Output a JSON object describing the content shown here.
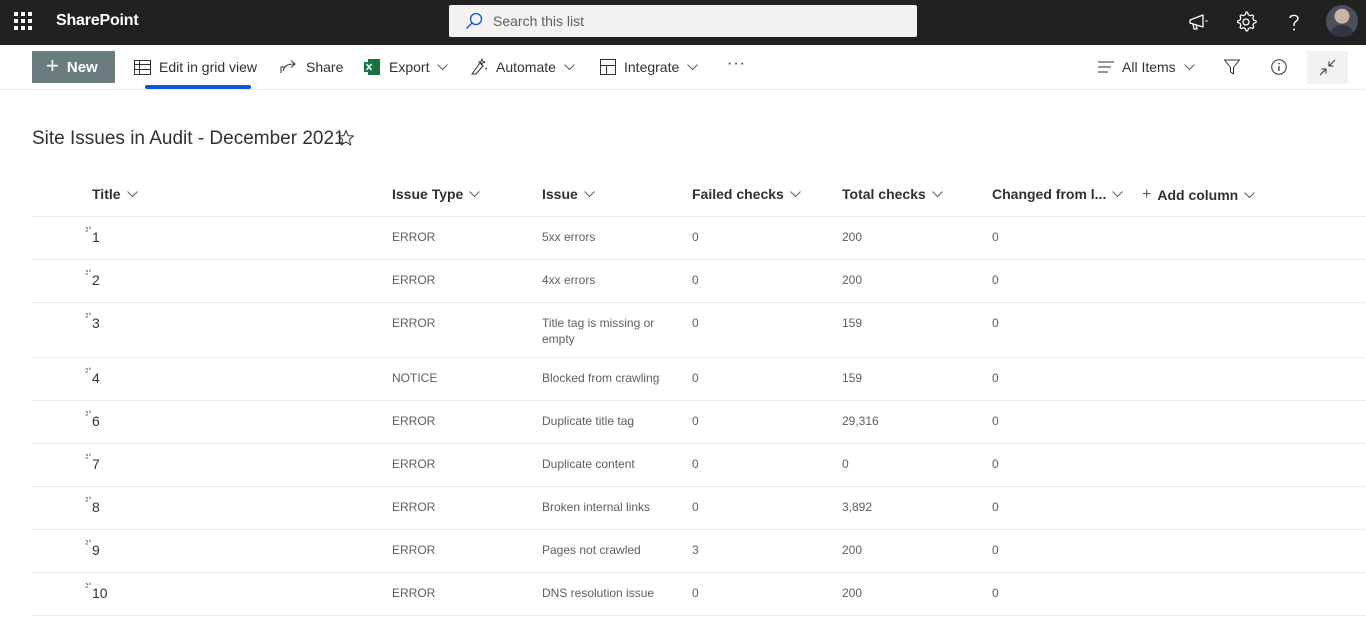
{
  "suite": {
    "app_name": "SharePoint",
    "search_placeholder": "Search this list"
  },
  "commands": {
    "new": "New",
    "edit_grid": "Edit in grid view",
    "share": "Share",
    "export": "Export",
    "automate": "Automate",
    "integrate": "Integrate",
    "more": "···",
    "view": "All Items"
  },
  "list": {
    "title": "Site Issues in Audit - December 2021"
  },
  "columns": {
    "title": "Title",
    "issue_type": "Issue Type",
    "issue": "Issue",
    "failed": "Failed checks",
    "total": "Total checks",
    "changed": "Changed from l...",
    "add": "Add column"
  },
  "rows": [
    {
      "title": "1",
      "issue_type": "ERROR",
      "issue": "5xx errors",
      "failed": "0",
      "total": "200",
      "changed": "0"
    },
    {
      "title": "2",
      "issue_type": "ERROR",
      "issue": "4xx errors",
      "failed": "0",
      "total": "200",
      "changed": "0"
    },
    {
      "title": "3",
      "issue_type": "ERROR",
      "issue": "Title tag is missing or empty",
      "failed": "0",
      "total": "159",
      "changed": "0"
    },
    {
      "title": "4",
      "issue_type": "NOTICE",
      "issue": "Blocked from crawling",
      "failed": "0",
      "total": "159",
      "changed": "0"
    },
    {
      "title": "6",
      "issue_type": "ERROR",
      "issue": "Duplicate title tag",
      "failed": "0",
      "total": "29,316",
      "changed": "0"
    },
    {
      "title": "7",
      "issue_type": "ERROR",
      "issue": "Duplicate content",
      "failed": "0",
      "total": "0",
      "changed": "0"
    },
    {
      "title": "8",
      "issue_type": "ERROR",
      "issue": "Broken internal links",
      "failed": "0",
      "total": "3,892",
      "changed": "0"
    },
    {
      "title": "9",
      "issue_type": "ERROR",
      "issue": "Pages not crawled",
      "failed": "3",
      "total": "200",
      "changed": "0"
    },
    {
      "title": "10",
      "issue_type": "ERROR",
      "issue": "DNS resolution issue",
      "failed": "0",
      "total": "200",
      "changed": "0"
    }
  ],
  "colors": {
    "suitebar": "#212121",
    "new_button": "#6b7c7f",
    "accent": "#0f54d4"
  }
}
